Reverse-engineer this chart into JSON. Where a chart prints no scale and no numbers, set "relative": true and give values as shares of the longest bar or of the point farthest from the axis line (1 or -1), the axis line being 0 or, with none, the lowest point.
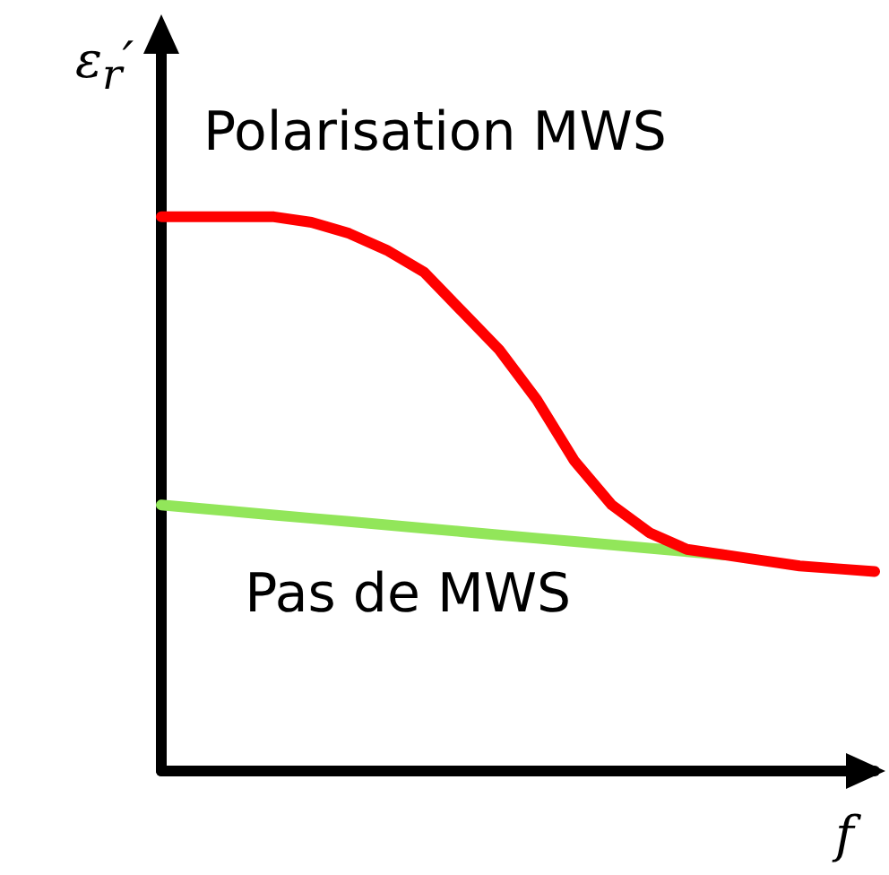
{
  "chart_data": {
    "type": "line",
    "relative": true,
    "xlabel": "f",
    "ylabel": "ε$_{r}$′",
    "categories": [
      null,
      null,
      null,
      null,
      null,
      null,
      null,
      null,
      null,
      null,
      null,
      null,
      null,
      null,
      null,
      null,
      null,
      null,
      null,
      null
    ],
    "series": [
      {
        "name": "Pas de MWS",
        "color": "#92e65a",
        "values": [
          0.48,
          0.474,
          0.468,
          0.462,
          0.456,
          0.45,
          0.444,
          0.438,
          0.432,
          0.426,
          0.42,
          0.414,
          0.408,
          0.402,
          0.396,
          0.39,
          null,
          null,
          null,
          null
        ]
      },
      {
        "name": "Polarisation MWS",
        "color": "#ff0000",
        "values": [
          1.0,
          1.0,
          1.0,
          1.0,
          0.99,
          0.97,
          0.94,
          0.9,
          0.83,
          0.76,
          0.67,
          0.56,
          0.48,
          0.43,
          0.4,
          0.39,
          0.38,
          0.37,
          0.365,
          0.36
        ]
      }
    ],
    "grid": false,
    "legend": false,
    "marker": "none",
    "line_style": "solid"
  }
}
